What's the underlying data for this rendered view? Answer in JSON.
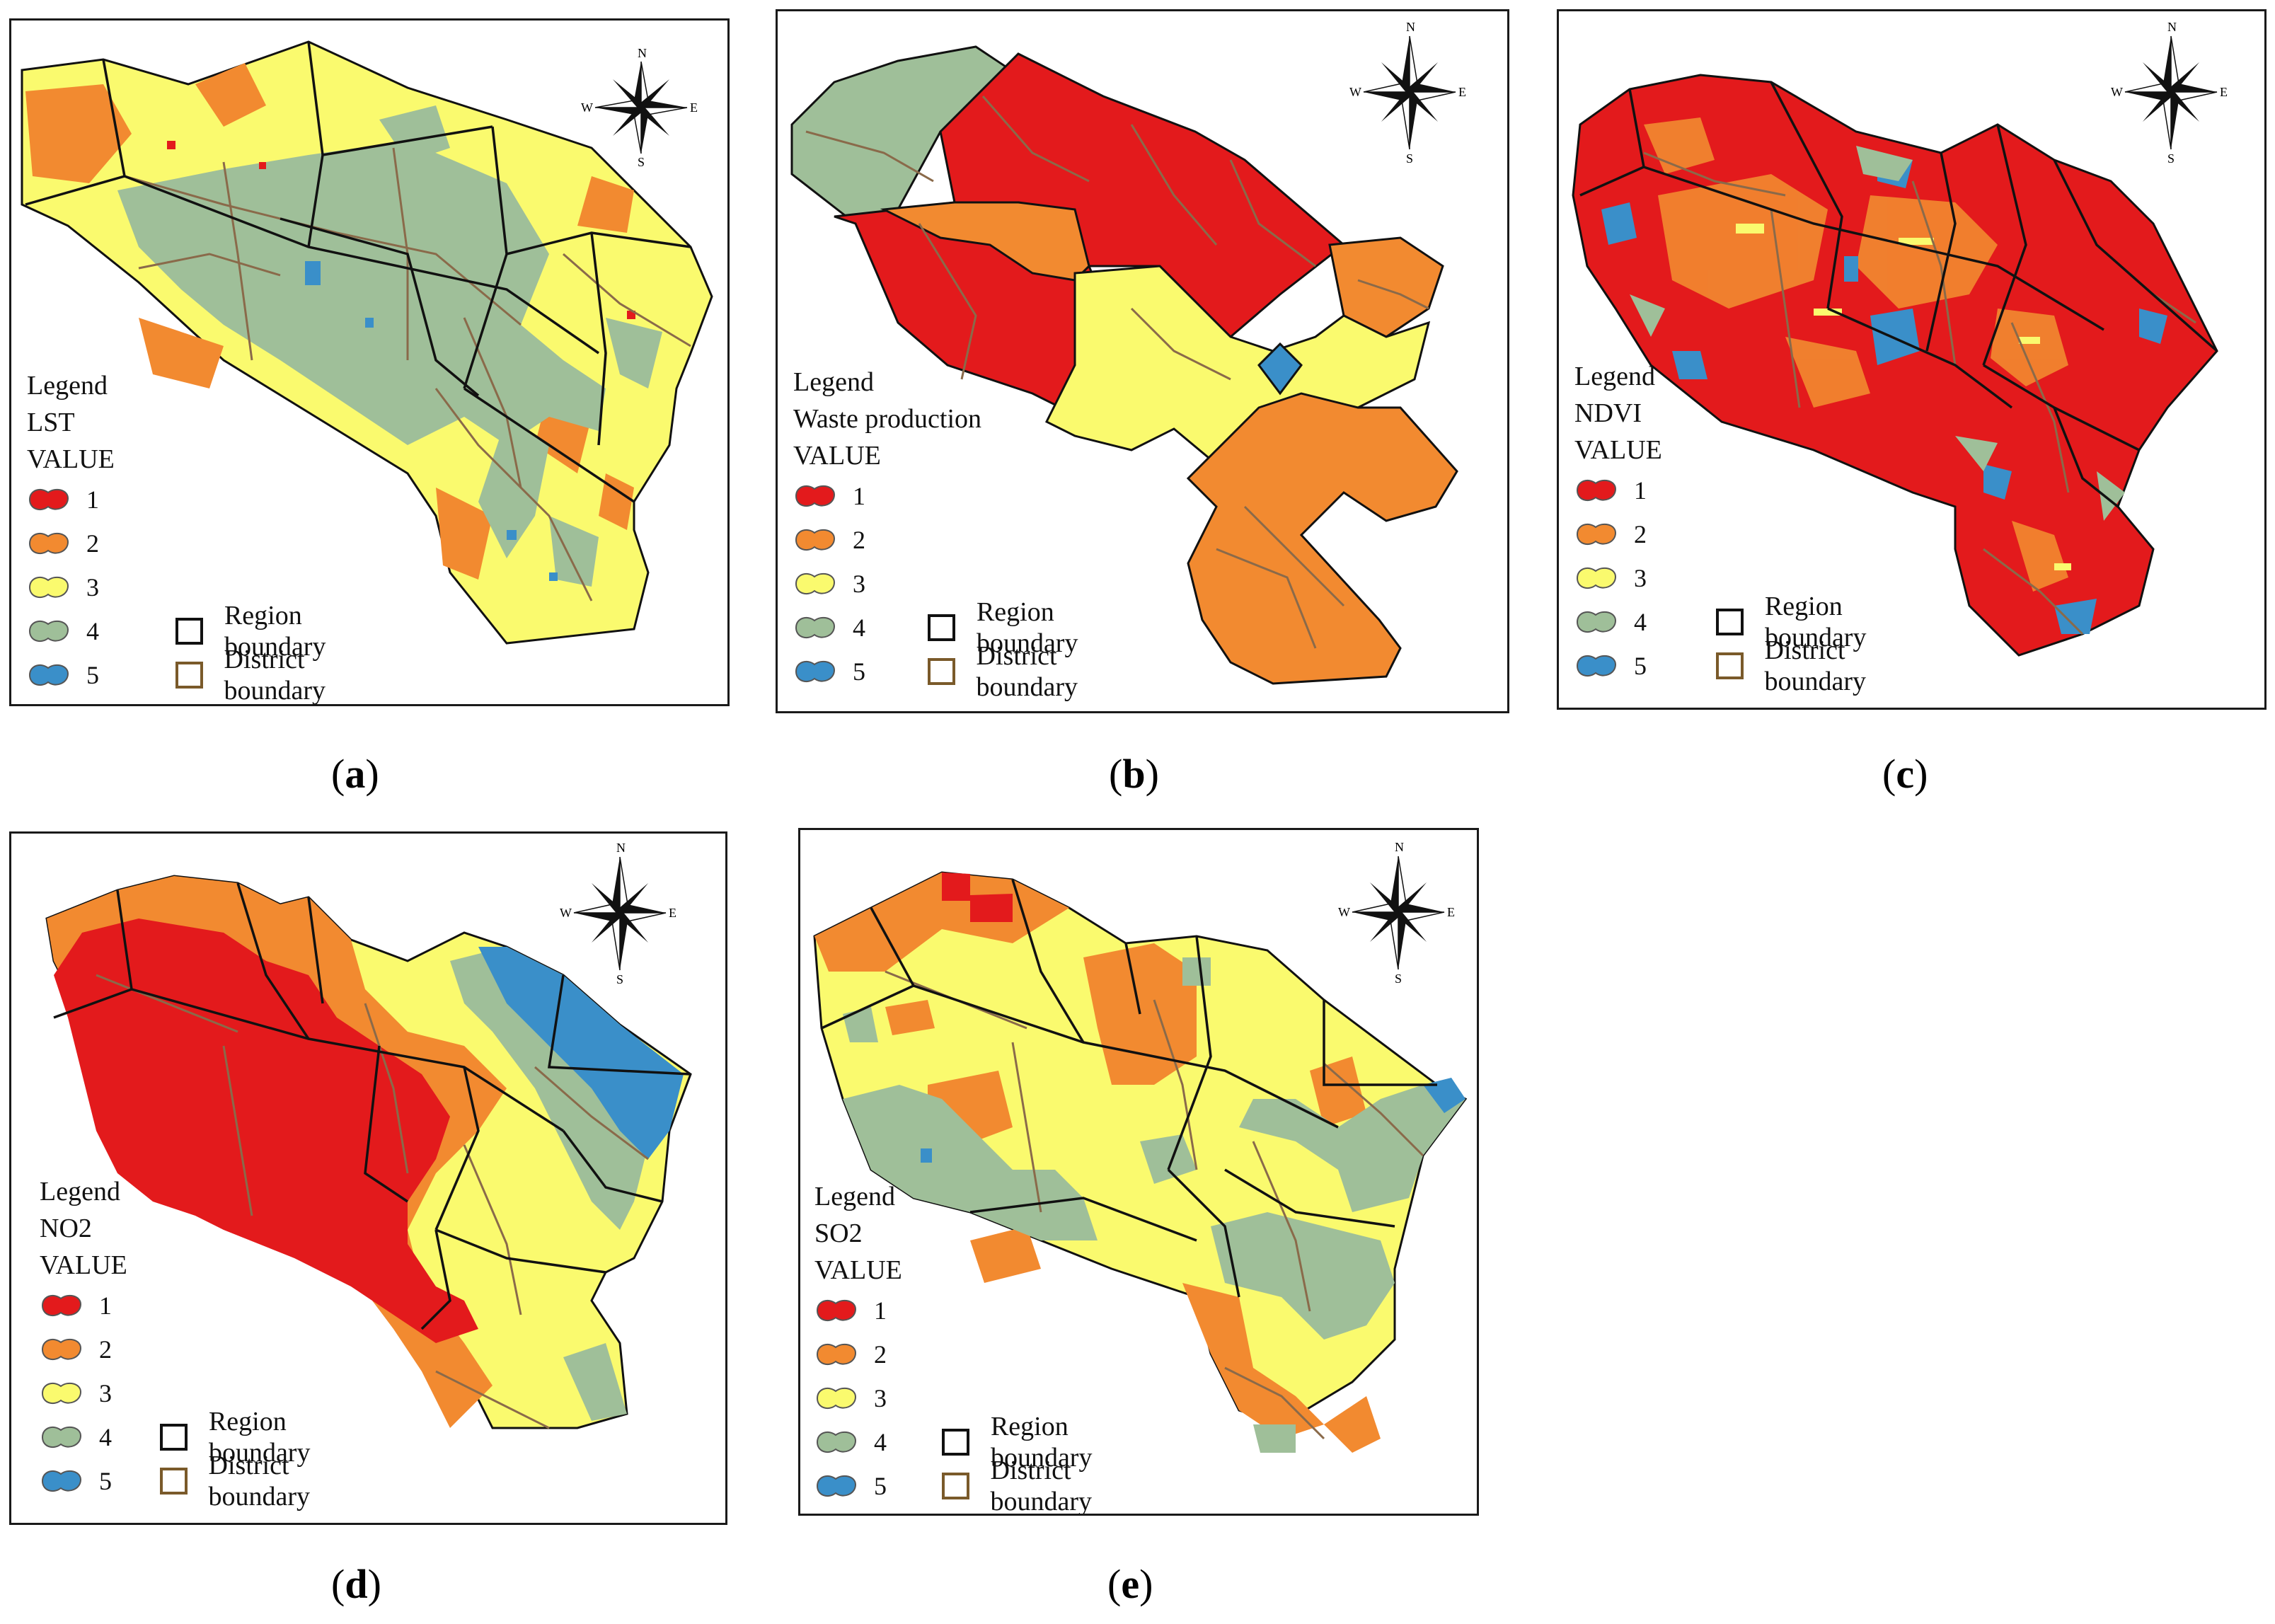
{
  "legend": {
    "heading": "Legend",
    "value_label": "VALUE",
    "classes": [
      {
        "value": "1",
        "color": "#e31a1c"
      },
      {
        "value": "2",
        "color": "#f28a30"
      },
      {
        "value": "3",
        "color": "#fafa6e"
      },
      {
        "value": "4",
        "color": "#9fbf99"
      },
      {
        "value": "5",
        "color": "#3a8fc9"
      }
    ],
    "region_boundary": {
      "label": "Region boundary",
      "color": "#111111"
    },
    "district_boundary": {
      "label": "District boundary",
      "color": "#7a5a2a"
    }
  },
  "compass": {
    "n": "N",
    "s": "S",
    "e": "E",
    "w": "W"
  },
  "panels": [
    {
      "id": "a",
      "layer": "LST",
      "caption_open": "(",
      "caption_letter": "a",
      "caption_close": ")"
    },
    {
      "id": "b",
      "layer": "Waste production",
      "caption_open": "(",
      "caption_letter": "b",
      "caption_close": ")"
    },
    {
      "id": "c",
      "layer": "NDVI",
      "caption_open": "(",
      "caption_letter": "c",
      "caption_close": ")"
    },
    {
      "id": "d",
      "layer": "NO2",
      "caption_open": "(",
      "caption_letter": "d",
      "caption_close": ")"
    },
    {
      "id": "e",
      "layer": "SO2",
      "caption_open": "(",
      "caption_letter": "e",
      "caption_close": ")"
    }
  ]
}
